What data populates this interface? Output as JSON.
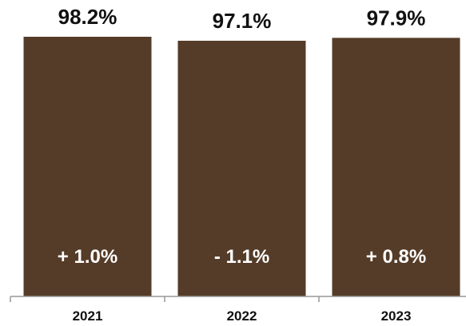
{
  "chart_data": {
    "type": "bar",
    "categories": [
      "2021",
      "2022",
      "2023"
    ],
    "values": [
      98.2,
      97.1,
      97.9
    ],
    "value_labels": [
      "98.2%",
      "97.1%",
      "97.9%"
    ],
    "change_labels": [
      "+ 1.0%",
      "- 1.1%",
      "+ 0.8%"
    ],
    "title": "",
    "xlabel": "",
    "ylabel": "",
    "grid": false,
    "legend": "none",
    "bar_color": "#553c28",
    "axis_color": "#999999"
  }
}
